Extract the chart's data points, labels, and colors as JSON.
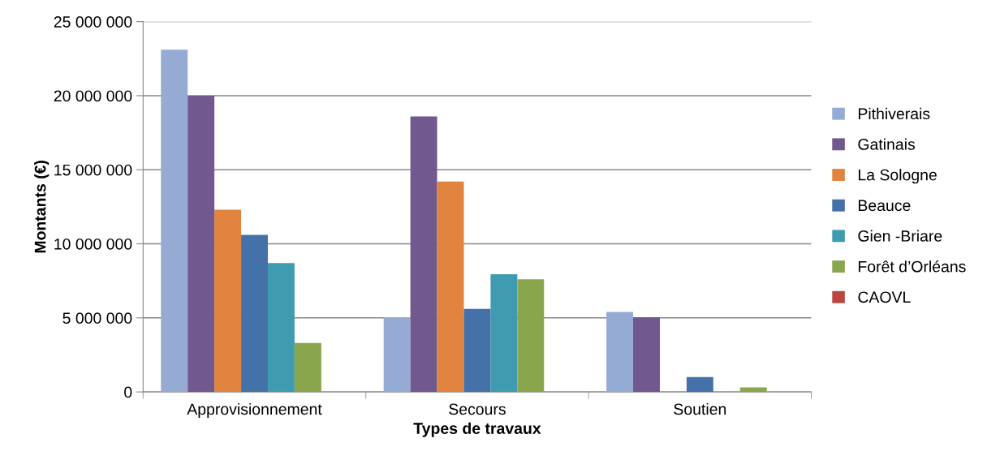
{
  "chart_data": {
    "type": "bar",
    "xlabel": "Types de travaux",
    "ylabel": "Montants (€)",
    "categories": [
      "Approvisionnement",
      "Secours",
      "Soutien"
    ],
    "series": [
      {
        "name": "Pithiverais",
        "color": "#95abd4",
        "values": [
          23100000,
          5050000,
          5400000
        ]
      },
      {
        "name": "Gatinais",
        "color": "#71598f",
        "values": [
          20000000,
          18600000,
          5050000
        ]
      },
      {
        "name": "La Sologne",
        "color": "#e0843f",
        "values": [
          12300000,
          14200000,
          0
        ]
      },
      {
        "name": "Beauce",
        "color": "#4472a8",
        "values": [
          10600000,
          5600000,
          1000000
        ]
      },
      {
        "name": "Gien -Briare",
        "color": "#3f9cb0",
        "values": [
          8700000,
          7950000,
          0
        ]
      },
      {
        "name": "Forêt d’Orléans",
        "color": "#8aa64d",
        "values": [
          3300000,
          7600000,
          300000
        ]
      },
      {
        "name": "CAOVL",
        "color": "#b94641",
        "values": [
          0,
          0,
          0
        ]
      }
    ],
    "ylim": [
      0,
      25000000
    ],
    "yticks": [
      0,
      {
        "value": 5000000,
        "label": "5 000 000"
      },
      {
        "value": 10000000,
        "label": "10 000 000"
      },
      {
        "value": 15000000,
        "label": "15 000 000"
      },
      {
        "value": 20000000,
        "label": "20 000 000"
      },
      {
        "value": 25000000,
        "label": "25 000 000"
      }
    ],
    "grid": "y",
    "legend": "right"
  }
}
